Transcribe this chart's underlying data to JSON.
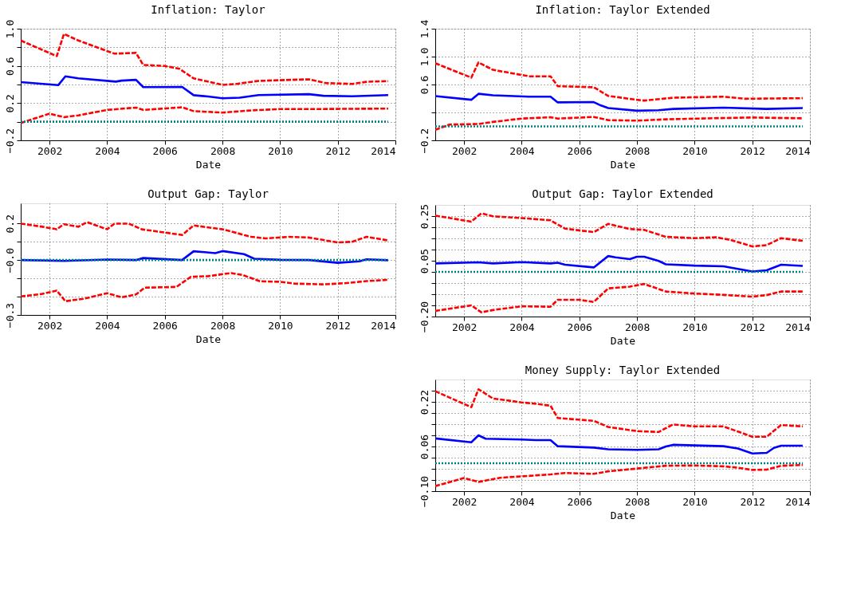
{
  "chart_data": [
    {
      "type": "line",
      "title": "Inflation: Taylor",
      "xlabel": "Date",
      "xlim": [
        2001,
        2014
      ],
      "xticks": [
        2002,
        2004,
        2006,
        2008,
        2010,
        2012,
        2014
      ],
      "ylim": [
        -0.2,
        1.0
      ],
      "yticks": [
        {
          "value": -0.2,
          "label": "−0.2"
        },
        {
          "value": 0.0,
          "label": null
        },
        0.2,
        {
          "value": 0.4,
          "label": null
        },
        0.6,
        {
          "value": 0.8,
          "label": null
        },
        {
          "value": 1.0,
          "label": "1.0"
        }
      ],
      "grid": true,
      "legend": false,
      "marker": "none",
      "series": [
        {
          "color": "#0000ff",
          "line_style": "solid",
          "x": [
            2001,
            2002.3,
            2002.55,
            2003,
            2004.3,
            2004.5,
            2005,
            2005.25,
            2006.6,
            2007,
            2007.5,
            2008,
            2008.6,
            2009.25,
            2011,
            2011.5,
            2012.5,
            2013.75
          ],
          "values": [
            0.426,
            0.393,
            0.488,
            0.466,
            0.431,
            0.442,
            0.45,
            0.372,
            0.374,
            0.285,
            0.271,
            0.252,
            0.258,
            0.287,
            0.296,
            0.279,
            0.274,
            0.287
          ]
        },
        {
          "color": "#ff0000",
          "line_style": "dashed",
          "x": [
            2001,
            2002.25,
            2002.5,
            2003,
            2004.25,
            2005,
            2005.25,
            2006,
            2006.5,
            2007,
            2008,
            2008.5,
            2009.25,
            2011,
            2011.6,
            2012.5,
            2013,
            2013.75
          ],
          "values": [
            0.873,
            0.705,
            0.944,
            0.873,
            0.732,
            0.74,
            0.61,
            0.599,
            0.57,
            0.466,
            0.396,
            0.407,
            0.439,
            0.456,
            0.415,
            0.407,
            0.429,
            0.437
          ]
        },
        {
          "color": "#ff0000",
          "line_style": "dashed",
          "x": [
            2001,
            2002,
            2002.5,
            2003,
            2004,
            2005,
            2005.25,
            2006.6,
            2007,
            2008,
            2009,
            2010,
            2011,
            2013.75
          ],
          "values": [
            -0.014,
            0.087,
            0.049,
            0.068,
            0.127,
            0.152,
            0.127,
            0.155,
            0.114,
            0.098,
            0.122,
            0.136,
            0.136,
            0.141
          ]
        },
        {
          "color": "#008080",
          "line_style": "dotted",
          "x": [
            2001,
            2013.75
          ],
          "values": [
            0,
            0
          ]
        }
      ]
    },
    {
      "type": "line",
      "title": "Inflation: Taylor Extended",
      "xlabel": "Date",
      "xlim": [
        2001,
        2014
      ],
      "xticks": [
        2002,
        2004,
        2006,
        2008,
        2010,
        2012,
        2014
      ],
      "ylim": [
        -0.2,
        1.4
      ],
      "yticks": [
        {
          "value": -0.2,
          "label": "−0.2"
        },
        {
          "value": 0.2,
          "label": null
        },
        0.6,
        {
          "value": 1.0,
          "label": "1.0"
        },
        1.4
      ],
      "grid": true,
      "legend": false,
      "marker": "none",
      "series": [
        {
          "color": "#0000ff",
          "line_style": "solid",
          "x": [
            2001,
            2002.25,
            2002.5,
            2003,
            2004.25,
            2005,
            2005.25,
            2006.5,
            2006.75,
            2007,
            2008,
            2008.75,
            2009.25,
            2011,
            2012.5,
            2013.75
          ],
          "values": [
            0.434,
            0.381,
            0.467,
            0.445,
            0.426,
            0.426,
            0.344,
            0.348,
            0.299,
            0.262,
            0.224,
            0.232,
            0.25,
            0.269,
            0.25,
            0.262
          ]
        },
        {
          "color": "#ff0000",
          "line_style": "dashed",
          "x": [
            2001,
            2002.25,
            2002.5,
            2003,
            2004.25,
            2005,
            2005.25,
            2006.5,
            2007,
            2008,
            2008.25,
            2009.25,
            2011,
            2011.75,
            2013.75
          ],
          "values": [
            0.905,
            0.699,
            0.916,
            0.811,
            0.718,
            0.718,
            0.576,
            0.561,
            0.437,
            0.381,
            0.37,
            0.411,
            0.426,
            0.396,
            0.404
          ]
        },
        {
          "color": "#ff0000",
          "line_style": "dashed",
          "x": [
            2001,
            2001.5,
            2002.5,
            2003,
            2004,
            2005,
            2005.25,
            2006.5,
            2007,
            2008,
            2009,
            2011,
            2012,
            2013.75
          ],
          "values": [
            -0.049,
            0.026,
            0.034,
            0.064,
            0.112,
            0.131,
            0.112,
            0.135,
            0.09,
            0.082,
            0.101,
            0.12,
            0.127,
            0.116
          ]
        },
        {
          "color": "#008080",
          "line_style": "dotted",
          "x": [
            2001,
            2013.75
          ],
          "values": [
            0,
            0
          ]
        }
      ]
    },
    {
      "type": "line",
      "title": "Output Gap: Taylor",
      "xlabel": "Date",
      "xlim": [
        2001,
        2014
      ],
      "xticks": [
        2002,
        2004,
        2006,
        2008,
        2010,
        2012,
        2014
      ],
      "ylim": [
        -0.3,
        0.31
      ],
      "yticks": [
        {
          "value": -0.3,
          "label": "−0.3"
        },
        {
          "value": -0.2,
          "label": null
        },
        {
          "value": -0.1,
          "label": null
        },
        {
          "value": 0.0,
          "label": "−0.0"
        },
        {
          "value": 0.1,
          "label": null
        },
        0.2
      ],
      "grid": true,
      "legend": false,
      "marker": "none",
      "series": [
        {
          "color": "#0000ff",
          "line_style": "solid",
          "x": [
            2001,
            2002.5,
            2004,
            2005,
            2005.25,
            2006.6,
            2007,
            2007.75,
            2008,
            2008.75,
            2009.1,
            2010,
            2011,
            2012,
            2012.75,
            2013,
            2013.75
          ],
          "values": [
            0,
            -0.005,
            0.003,
            0,
            0.011,
            0,
            0.048,
            0.038,
            0.049,
            0.032,
            0.007,
            0.001,
            0,
            -0.015,
            -0.007,
            0.004,
            -0.001
          ]
        },
        {
          "color": "#ff0000",
          "line_style": "dashed",
          "x": [
            2001,
            2001.75,
            2002.25,
            2002.5,
            2003,
            2003.3,
            2004,
            2004.25,
            2004.75,
            2005.2,
            2006.6,
            2007,
            2008,
            2009,
            2009.5,
            2010.3,
            2011,
            2012,
            2012.5,
            2013,
            2013.75
          ],
          "values": [
            0.199,
            0.182,
            0.168,
            0.196,
            0.182,
            0.207,
            0.168,
            0.199,
            0.199,
            0.168,
            0.137,
            0.189,
            0.168,
            0.127,
            0.118,
            0.127,
            0.123,
            0.096,
            0.1,
            0.127,
            0.107
          ]
        },
        {
          "color": "#ff0000",
          "line_style": "dashed",
          "x": [
            2001,
            2001.75,
            2002.25,
            2002.55,
            2003.2,
            2004,
            2004.5,
            2005,
            2005.3,
            2006.4,
            2006.9,
            2007.5,
            2008.3,
            2008.7,
            2009.3,
            2010,
            2010.5,
            2011.5,
            2012.3,
            2013,
            2013.75
          ],
          "values": [
            -0.199,
            -0.185,
            -0.167,
            -0.225,
            -0.211,
            -0.181,
            -0.204,
            -0.188,
            -0.151,
            -0.147,
            -0.092,
            -0.088,
            -0.071,
            -0.082,
            -0.116,
            -0.119,
            -0.129,
            -0.133,
            -0.126,
            -0.115,
            -0.108
          ]
        },
        {
          "color": "#008080",
          "line_style": "dotted",
          "x": [
            2001,
            2013.75
          ],
          "values": [
            0,
            0
          ]
        }
      ]
    },
    {
      "type": "line",
      "title": "Output Gap: Taylor Extended",
      "xlabel": "Date",
      "xlim": [
        2001,
        2014
      ],
      "xticks": [
        2002,
        2004,
        2006,
        2008,
        2010,
        2012,
        2014
      ],
      "ylim": [
        -0.2,
        0.3
      ],
      "yticks": [
        {
          "value": -0.2,
          "label": "−0.20"
        },
        {
          "value": -0.15,
          "label": null
        },
        {
          "value": -0.1,
          "label": null
        },
        {
          "value": -0.05,
          "label": null
        },
        {
          "value": 0.0,
          "label": null
        },
        0.05,
        {
          "value": 0.1,
          "label": null
        },
        {
          "value": 0.15,
          "label": null
        },
        {
          "value": 0.2,
          "label": null
        },
        0.25
      ],
      "grid": true,
      "legend": false,
      "marker": "none",
      "series": [
        {
          "color": "#0000ff",
          "line_style": "solid",
          "x": [
            2001,
            2002.5,
            2003,
            2004,
            2005,
            2005.25,
            2005.5,
            2006.5,
            2007,
            2007.25,
            2007.75,
            2008,
            2008.25,
            2008.75,
            2009,
            2010,
            2011,
            2012,
            2012.5,
            2013,
            2013.75
          ],
          "values": [
            0.038,
            0.043,
            0.038,
            0.044,
            0.038,
            0.041,
            0.032,
            0.02,
            0.071,
            0.065,
            0.057,
            0.068,
            0.068,
            0.049,
            0.034,
            0.028,
            0.025,
            0.002,
            0.007,
            0.032,
            0.027
          ]
        },
        {
          "color": "#ff0000",
          "line_style": "dashed",
          "x": [
            2001,
            2002.25,
            2002.6,
            2003,
            2004,
            2005,
            2005.5,
            2006.5,
            2007,
            2007.75,
            2008.25,
            2009,
            2010,
            2010.75,
            2011.25,
            2012,
            2012.5,
            2013,
            2013.75
          ],
          "values": [
            0.252,
            0.225,
            0.262,
            0.249,
            0.241,
            0.231,
            0.194,
            0.178,
            0.215,
            0.192,
            0.188,
            0.157,
            0.151,
            0.155,
            0.143,
            0.114,
            0.12,
            0.151,
            0.139
          ]
        },
        {
          "color": "#ff0000",
          "line_style": "dashed",
          "x": [
            2001,
            2002.25,
            2002.6,
            2003,
            2004,
            2005,
            2005.25,
            2006,
            2006.5,
            2007,
            2007.75,
            2008.25,
            2009,
            2010,
            2011,
            2012,
            2012.5,
            2013,
            2013.75
          ],
          "values": [
            -0.175,
            -0.15,
            -0.181,
            -0.171,
            -0.154,
            -0.156,
            -0.125,
            -0.125,
            -0.135,
            -0.074,
            -0.066,
            -0.054,
            -0.088,
            -0.097,
            -0.103,
            -0.111,
            -0.104,
            -0.088,
            -0.088
          ]
        },
        {
          "color": "#008080",
          "line_style": "dotted",
          "x": [
            2001,
            2013.75
          ],
          "values": [
            0,
            0
          ]
        }
      ]
    },
    {
      "type": "line",
      "title": "Money Supply: Taylor Extended",
      "xlabel": "Date",
      "xlim": [
        2001,
        2014
      ],
      "xticks": [
        2002,
        2004,
        2006,
        2008,
        2010,
        2012,
        2014
      ],
      "ylim": [
        -0.1,
        0.3
      ],
      "yticks": [
        {
          "value": -0.1,
          "label": "−0.10"
        },
        {
          "value": -0.06,
          "label": null
        },
        {
          "value": -0.02,
          "label": null
        },
        {
          "value": 0.02,
          "label": null
        },
        0.06,
        {
          "value": 0.1,
          "label": null
        },
        {
          "value": 0.14,
          "label": null
        },
        {
          "value": 0.18,
          "label": null
        },
        0.22,
        {
          "value": 0.26,
          "label": null
        }
      ],
      "grid": true,
      "legend": false,
      "marker": "none",
      "series": [
        {
          "color": "#0000ff",
          "line_style": "solid",
          "x": [
            2001,
            2002.25,
            2002.5,
            2002.75,
            2004,
            2004.5,
            2005,
            2005.25,
            2006.5,
            2007,
            2008,
            2008.75,
            2009,
            2009.25,
            2011,
            2011.5,
            2012,
            2012.5,
            2012.75,
            2013,
            2013.75
          ],
          "values": [
            0.089,
            0.075,
            0.1,
            0.088,
            0.085,
            0.083,
            0.083,
            0.061,
            0.056,
            0.05,
            0.048,
            0.05,
            0.06,
            0.066,
            0.061,
            0.053,
            0.035,
            0.037,
            0.055,
            0.063,
            0.063
          ]
        },
        {
          "color": "#ff0000",
          "line_style": "dashed",
          "x": [
            2001,
            2002.25,
            2002.5,
            2003,
            2004,
            2004.5,
            2005,
            2005.25,
            2006.5,
            2007,
            2008,
            2008.75,
            2009.25,
            2010,
            2011,
            2012,
            2012.5,
            2013,
            2013.75
          ],
          "values": [
            0.258,
            0.201,
            0.265,
            0.232,
            0.218,
            0.213,
            0.206,
            0.162,
            0.152,
            0.13,
            0.115,
            0.112,
            0.139,
            0.132,
            0.132,
            0.095,
            0.095,
            0.137,
            0.132
          ]
        },
        {
          "color": "#ff0000",
          "line_style": "dashed",
          "x": [
            2001,
            2002,
            2002.5,
            2003.25,
            2004,
            2005,
            2005.5,
            2006.5,
            2007,
            2008,
            2009,
            2010,
            2011,
            2011.5,
            2012,
            2012.5,
            2013,
            2013.75
          ],
          "values": [
            -0.082,
            -0.053,
            -0.067,
            -0.052,
            -0.047,
            -0.04,
            -0.035,
            -0.038,
            -0.029,
            -0.019,
            -0.009,
            -0.008,
            -0.011,
            -0.016,
            -0.024,
            -0.023,
            -0.009,
            -0.006
          ]
        },
        {
          "color": "#008080",
          "line_style": "dotted",
          "x": [
            2001,
            2013.75
          ],
          "values": [
            0,
            0
          ]
        }
      ]
    }
  ]
}
